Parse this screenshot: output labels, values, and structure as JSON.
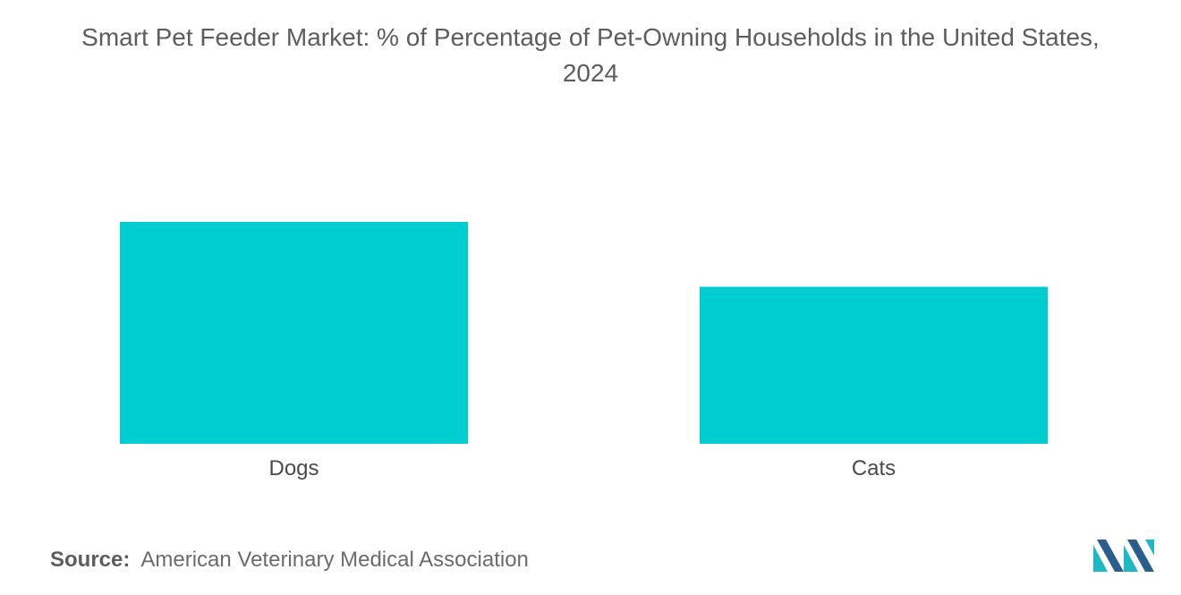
{
  "chart_data": {
    "type": "bar",
    "title_lines": [
      "Smart Pet Feeder Market: % of Percentage of Pet-Owning Households in the United States,",
      "2024"
    ],
    "categories": [
      "Dogs",
      "Cats"
    ],
    "values": [
      65,
      46
    ],
    "ylim": [
      0,
      65
    ],
    "xlabel": "",
    "ylabel": "",
    "grid": false,
    "legend": "none",
    "bar_color": "#00cdd0"
  },
  "source": {
    "label": "Source:",
    "text": "American Veterinary Medical Association"
  },
  "brand": {
    "logo_icon": "mordor-intelligence-logo-icon",
    "colors": [
      "#2a5e8c",
      "#1fb7c4"
    ]
  }
}
